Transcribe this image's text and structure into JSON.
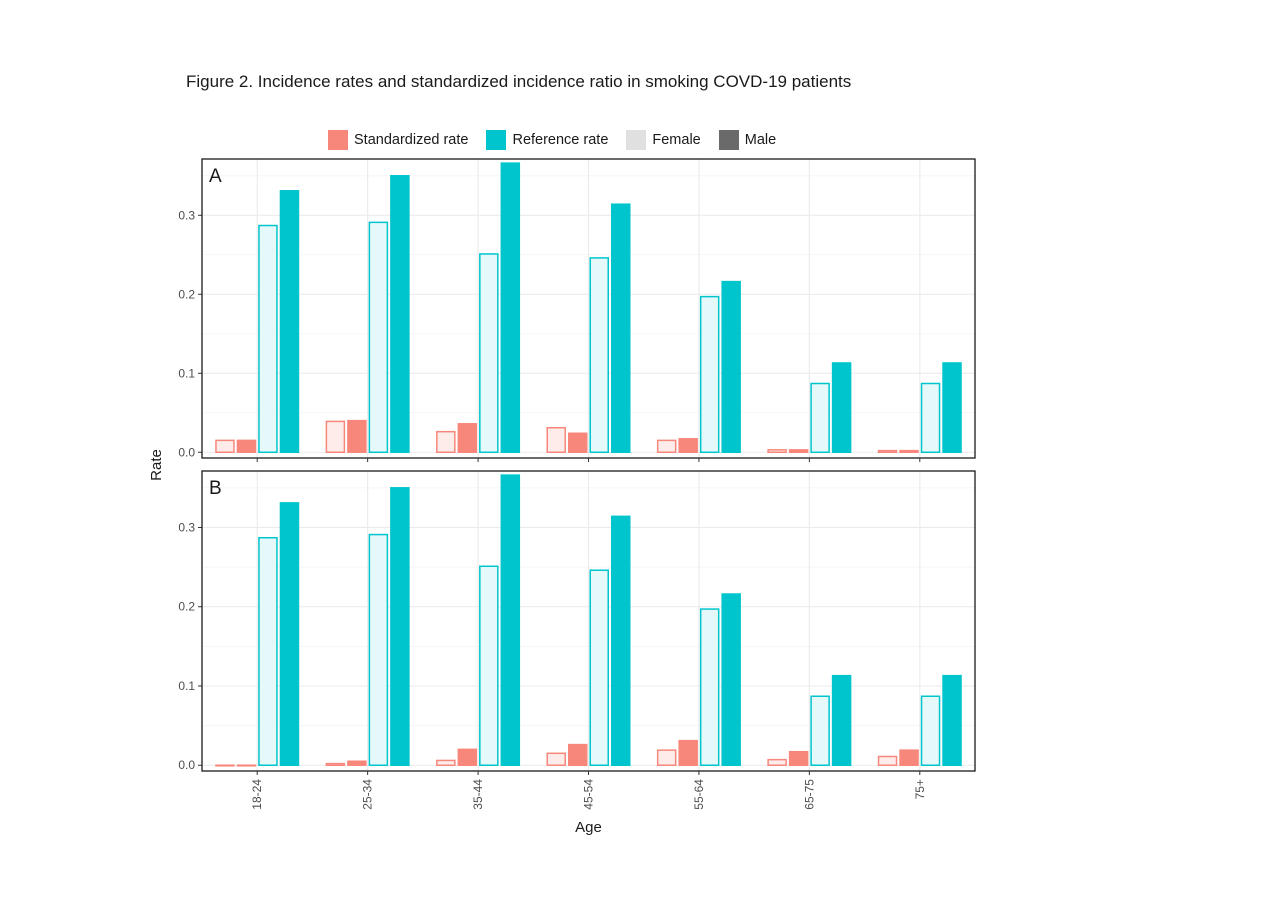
{
  "figure": {
    "title": "Figure 2. Incidence rates and standardized incidence ratio in smoking COVD-19 patients"
  },
  "legend": [
    {
      "label": "Standardized rate",
      "color": "#f8877b"
    },
    {
      "label": "Reference rate",
      "color": "#00c5cd"
    },
    {
      "label": "Female",
      "color": "#e0e0e0"
    },
    {
      "label": "Male",
      "color": "#6a6a6a"
    }
  ],
  "colors": {
    "standardized": "#f8877b",
    "standardized_light": "#fdecea",
    "reference": "#00c5cd",
    "reference_light": "#e6f9fa",
    "grid": "#ebebeb",
    "frame": "#1a1a1a"
  },
  "chart_data": {
    "type": "bar",
    "xlabel": "Age",
    "ylabel": "Rate",
    "categories": [
      "18-24",
      "25-34",
      "35-44",
      "45-54",
      "55-64",
      "65-75",
      "75+"
    ],
    "yticks": [
      0.0,
      0.1,
      0.2,
      0.3
    ],
    "ytick_labels": [
      "0.0",
      "0.1",
      "0.2",
      "0.3"
    ],
    "ylim": [
      -0.006,
      0.37
    ],
    "panels": [
      {
        "label": "A",
        "series": [
          {
            "name": "Standardized rate - Female",
            "values": [
              0.016,
              0.04,
              0.027,
              0.032,
              0.016,
              0.004,
              0.003
            ]
          },
          {
            "name": "Standardized rate - Male",
            "values": [
              0.016,
              0.041,
              0.037,
              0.025,
              0.018,
              0.004,
              0.003
            ]
          },
          {
            "name": "Reference rate - Female",
            "values": [
              0.288,
              0.292,
              0.252,
              0.247,
              0.198,
              0.088,
              0.088
            ]
          },
          {
            "name": "Reference rate - Male",
            "values": [
              0.332,
              0.351,
              0.367,
              0.315,
              0.217,
              0.114,
              0.114
            ]
          }
        ]
      },
      {
        "label": "B",
        "series": [
          {
            "name": "Standardized rate - Female",
            "values": [
              0.001,
              0.003,
              0.007,
              0.016,
              0.02,
              0.008,
              0.012
            ]
          },
          {
            "name": "Standardized rate - Male",
            "values": [
              0.001,
              0.006,
              0.021,
              0.027,
              0.032,
              0.018,
              0.02
            ]
          },
          {
            "name": "Reference rate - Female",
            "values": [
              0.288,
              0.292,
              0.252,
              0.247,
              0.198,
              0.088,
              0.088
            ]
          },
          {
            "name": "Reference rate - Male",
            "values": [
              0.332,
              0.351,
              0.367,
              0.315,
              0.217,
              0.114,
              0.114
            ]
          }
        ]
      }
    ]
  }
}
